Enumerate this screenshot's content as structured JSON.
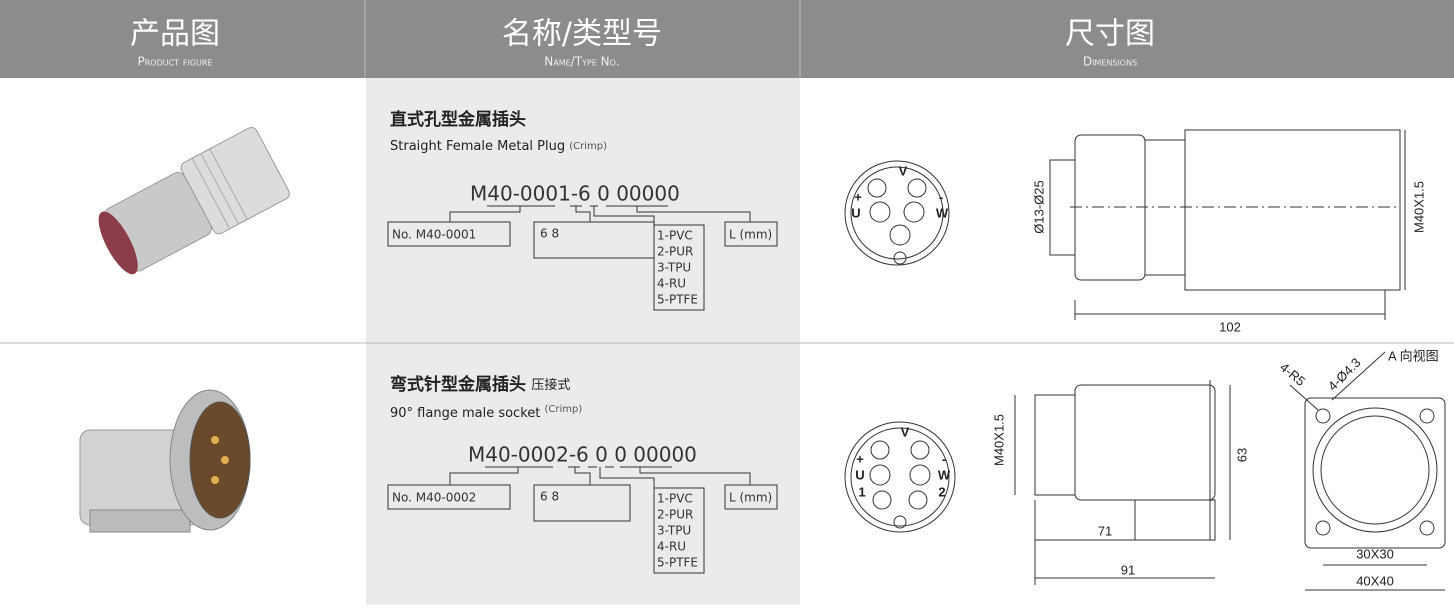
{
  "header": {
    "columns": [
      {
        "title": "产品图",
        "subtitle": "Product figure"
      },
      {
        "title": "名称/类型号",
        "subtitle": "Name/Type No."
      },
      {
        "title": "尺寸图",
        "subtitle": "Dimensions"
      }
    ]
  },
  "rows": [
    {
      "name": "直式孔型金属插头",
      "name_en": "Straight Female Metal Plug",
      "crimp": "(Crimp)",
      "code": "M40-0001-6 0 00000",
      "no": "No. M40-0001",
      "digits": "6 8",
      "materials": [
        "1-PVC",
        "2-PUR",
        "3-TPU",
        "4-RU",
        "5-PTFE"
      ],
      "length": "L (mm)",
      "dimensions": {
        "pins": [
          "V",
          "U",
          "W",
          "+",
          "-"
        ],
        "cable": "Ø13-Ø25",
        "thread": "M40X1.5",
        "total": "102"
      }
    },
    {
      "name": "弯式针型金属插头",
      "name_note": "压接式",
      "name_en": "90° flange male socket",
      "crimp": "(Crimp)",
      "code": "M40-0002-6 0 0 00000",
      "no": "No. M40-0002",
      "digits": "6 8",
      "materials": [
        "1-PVC",
        "2-PUR",
        "3-TPU",
        "4-RU",
        "5-PTFE"
      ],
      "length": "L (mm)",
      "dimensions": {
        "pins": [
          "V",
          "U",
          "W",
          "+",
          "-",
          "1",
          "2"
        ],
        "thread": "M40X1.5",
        "height": "63",
        "l1": "71",
        "l2": "91",
        "view": "A 向视图",
        "radius": "4-R5",
        "holes": "4-Ø4.3",
        "inner": "30X30",
        "outer": "40X40"
      }
    }
  ]
}
